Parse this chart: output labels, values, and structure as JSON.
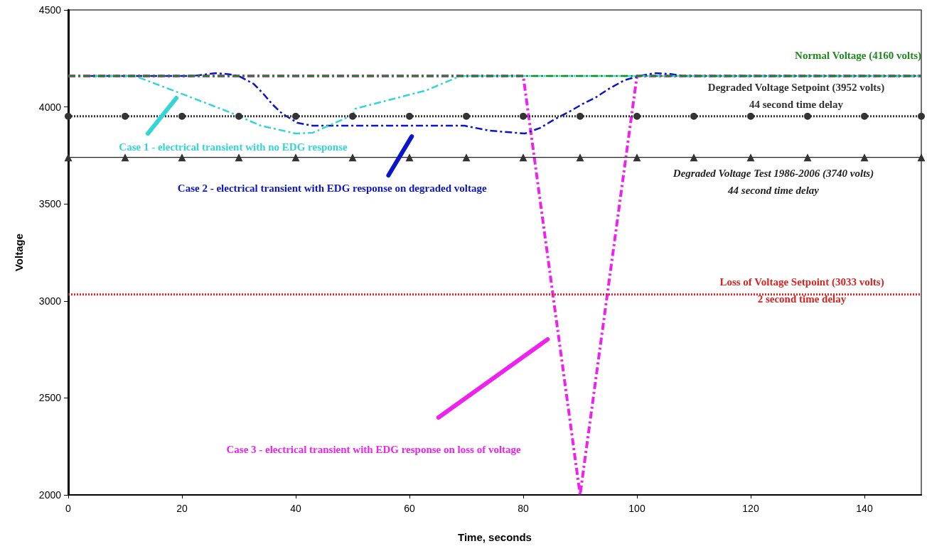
{
  "chart_data": {
    "type": "line",
    "xlabel": "Time, seconds",
    "ylabel": "Voltage",
    "xlim": [
      0,
      150
    ],
    "xticks": [
      0,
      20,
      40,
      60,
      80,
      100,
      120,
      140
    ],
    "ylim": [
      2000,
      4500
    ],
    "yticks": [
      2000,
      2500,
      3000,
      3500,
      4000,
      4500
    ],
    "grid": false,
    "legend": false,
    "series": [
      {
        "name": "Normal Voltage (4160 volts)",
        "color": "#1e8a1e",
        "line_style": "dashed",
        "marker": "none",
        "x": [
          0,
          150
        ],
        "values": [
          4160,
          4160
        ]
      },
      {
        "name": "Degraded Voltage Setpoint (3952 volts)\n44 second time delay",
        "color": "#333333",
        "line_style": "dotted",
        "marker": "circle",
        "x": [
          0,
          10,
          20,
          30,
          40,
          50,
          60,
          70,
          80,
          90,
          100,
          110,
          120,
          130,
          140,
          150
        ],
        "values": [
          3952,
          3952,
          3952,
          3952,
          3952,
          3952,
          3952,
          3952,
          3952,
          3952,
          3952,
          3952,
          3952,
          3952,
          3952,
          3952
        ]
      },
      {
        "name": "Degraded Voltage Test 1986-2006 (3740 volts)\n44 second time delay",
        "color": "#222222",
        "line_style": "solid",
        "marker": "triangle",
        "x": [
          0,
          10,
          20,
          30,
          40,
          50,
          60,
          70,
          80,
          90,
          100,
          110,
          120,
          130,
          140,
          150
        ],
        "values": [
          3740,
          3740,
          3740,
          3740,
          3740,
          3740,
          3740,
          3740,
          3740,
          3740,
          3740,
          3740,
          3740,
          3740,
          3740,
          3740
        ]
      },
      {
        "name": "Loss of Voltage Setpoint (3033 volts)\n2 second time delay",
        "color": "#dd2222",
        "line_style": "dotted",
        "marker": "none",
        "x": [
          0,
          150
        ],
        "values": [
          3033,
          3033
        ]
      },
      {
        "name": "Case 1 - electrical transient with no EDG response",
        "color": "#33d6d6",
        "line_style": "dashed",
        "marker": "none",
        "x": [
          4.6,
          11.7,
          19.3,
          28,
          33.9,
          40,
          43,
          50,
          50.5,
          63,
          69,
          150
        ],
        "values": [
          4160,
          4160,
          4075,
          3977,
          3903,
          3863,
          3867,
          3958,
          3991,
          4086,
          4160,
          4160
        ]
      },
      {
        "name": "Case 2 - electrical transient with EDG response on degraded voltage",
        "color": "#0a14c8",
        "line_style": "dashed",
        "marker": "none",
        "x": [
          3.9,
          22,
          25.9,
          28.4,
          30.2,
          32.6,
          34.3,
          35.9,
          37.6,
          40.3,
          43,
          69.7,
          74,
          80.3,
          83,
          85.5,
          88.2,
          90.3,
          92.8,
          95.1,
          97.8,
          100.5,
          103,
          105.9,
          108,
          150
        ],
        "values": [
          4160,
          4160,
          4174,
          4168,
          4156,
          4119,
          4068,
          4013,
          3966,
          3918,
          3903,
          3903,
          3878,
          3863,
          3892,
          3936,
          3977,
          4013,
          4050,
          4094,
          4138,
          4160,
          4174,
          4170,
          4160,
          4160
        ]
      },
      {
        "name": "Case 3 - electrical transient with EDG response on loss of voltage",
        "color": "#ee22ee",
        "line_style": "dashed",
        "marker": "none",
        "x": [
          0,
          80,
          90,
          100,
          150
        ],
        "values": [
          4160,
          4160,
          2000,
          4160,
          4160
        ]
      }
    ]
  }
}
